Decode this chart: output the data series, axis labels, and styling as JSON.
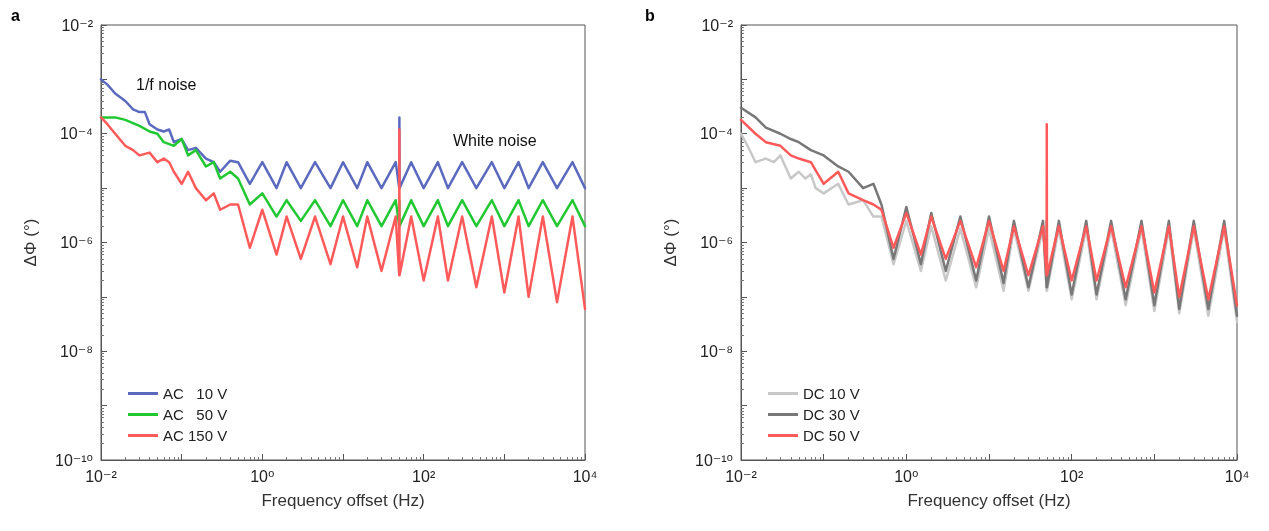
{
  "chart_data": [
    {
      "type": "line",
      "title": "a",
      "xlabel": "Frequency offset (Hz)",
      "ylabel": "ΔΦ (°)",
      "log": "xy",
      "grid": false,
      "legend": "bottom left",
      "marker": "none",
      "line_style": "solid",
      "xlim": [
        0.01,
        10000
      ],
      "ylim": [
        1e-10,
        0.01
      ],
      "xticks": [
        {
          "value": 0.01,
          "label": "10⁻²"
        },
        {
          "value": 0.1,
          "label": null
        },
        {
          "value": 1,
          "label": "10⁰"
        },
        {
          "value": 10,
          "label": null
        },
        {
          "value": 100,
          "label": "10²"
        },
        {
          "value": 1000,
          "label": null
        },
        {
          "value": 10000,
          "label": "10⁴"
        }
      ],
      "yticks": [
        {
          "value": 1e-10,
          "label": "10⁻¹⁰"
        },
        {
          "value": 1e-09,
          "label": null
        },
        {
          "value": 1e-08,
          "label": "10⁻⁸"
        },
        {
          "value": 1e-07,
          "label": null
        },
        {
          "value": 1e-06,
          "label": "10⁻⁶"
        },
        {
          "value": 1e-05,
          "label": null
        },
        {
          "value": 0.0001,
          "label": "10⁻⁴"
        },
        {
          "value": 0.001,
          "label": null
        },
        {
          "value": 0.01,
          "label": "10⁻²"
        }
      ],
      "annotations": [
        "1/f noise",
        "White noise"
      ],
      "series": [
        {
          "name": "AC   10 V",
          "color": "#5b6abf",
          "x": [
            0.01,
            0.012,
            0.015,
            0.02,
            0.025,
            0.03,
            0.035,
            0.04,
            0.05,
            0.06,
            0.07,
            0.08,
            0.1,
            0.12,
            0.15,
            0.2,
            0.25,
            0.3,
            0.4,
            0.5,
            0.7,
            1,
            1.5,
            2,
            3,
            4.5,
            7,
            10,
            15,
            20,
            30,
            45,
            49.8,
            50,
            50.2,
            70,
            100,
            150,
            200,
            300,
            450,
            700,
            1000,
            1500,
            2000,
            3000,
            4500,
            7000,
            10000
          ],
          "values": [
            0.001,
            0.0008,
            0.00055,
            0.0004,
            0.00028,
            0.00025,
            0.00025,
            0.00015,
            0.00012,
            0.00011,
            0.00012,
            7e-05,
            8e-05,
            5e-05,
            5.5e-05,
            3.5e-05,
            3e-05,
            2e-05,
            3.2e-05,
            3e-05,
            1.2e-05,
            3e-05,
            1e-05,
            3e-05,
            1e-05,
            3e-05,
            1e-05,
            3e-05,
            1e-05,
            3e-05,
            1e-05,
            3e-05,
            1e-05,
            0.0002,
            1e-05,
            3e-05,
            1e-05,
            3e-05,
            1e-05,
            3e-05,
            1e-05,
            3e-05,
            1e-05,
            3e-05,
            1e-05,
            3e-05,
            1e-05,
            3e-05,
            1e-05
          ]
        },
        {
          "name": "AC   50 V",
          "color": "#22c832",
          "x": [
            0.01,
            0.015,
            0.02,
            0.03,
            0.04,
            0.05,
            0.06,
            0.08,
            0.1,
            0.12,
            0.15,
            0.2,
            0.25,
            0.3,
            0.4,
            0.5,
            0.7,
            1,
            1.5,
            2,
            3,
            4.5,
            7,
            10,
            15,
            20,
            30,
            45,
            49.8,
            50,
            50.2,
            70,
            100,
            150,
            200,
            300,
            450,
            700,
            1000,
            1500,
            2000,
            3000,
            4500,
            7000,
            10000
          ],
          "values": [
            0.0002,
            0.0002,
            0.00018,
            0.00014,
            0.00011,
            0.0001,
            7e-05,
            6e-05,
            8e-05,
            4e-05,
            5e-05,
            2.5e-05,
            3e-05,
            1.5e-05,
            2e-05,
            1.5e-05,
            5e-06,
            8e-06,
            3e-06,
            6e-06,
            2.5e-06,
            6e-06,
            2e-06,
            6e-06,
            2e-06,
            6e-06,
            2e-06,
            6e-06,
            2e-06,
            6e-06,
            2e-06,
            6e-06,
            2e-06,
            6e-06,
            2e-06,
            6e-06,
            2e-06,
            6e-06,
            2e-06,
            6e-06,
            2e-06,
            6e-06,
            2e-06,
            6e-06,
            2e-06
          ]
        },
        {
          "name": "AC 150 V",
          "color": "#ff5a5a",
          "x": [
            0.01,
            0.012,
            0.015,
            0.02,
            0.025,
            0.03,
            0.04,
            0.05,
            0.06,
            0.07,
            0.08,
            0.1,
            0.12,
            0.15,
            0.2,
            0.25,
            0.3,
            0.4,
            0.5,
            0.7,
            1,
            1.5,
            2,
            3,
            4.5,
            7,
            10,
            15,
            20,
            30,
            45,
            49.8,
            50,
            50.2,
            70,
            100,
            150,
            200,
            300,
            450,
            700,
            1000,
            1500,
            2000,
            3000,
            4500,
            7000,
            10000
          ],
          "values": [
            0.0002,
            0.00015,
            0.0001,
            6e-05,
            5e-05,
            4e-05,
            4.5e-05,
            3e-05,
            3.5e-05,
            3e-05,
            2e-05,
            1.2e-05,
            2e-05,
            1e-05,
            6e-06,
            8e-06,
            4e-06,
            5e-06,
            5e-06,
            8e-07,
            4e-06,
            6e-07,
            3e-06,
            5e-07,
            3e-06,
            4e-07,
            3e-06,
            3.5e-07,
            3e-06,
            3e-07,
            3e-06,
            2.5e-07,
            0.00012,
            2.5e-07,
            3e-06,
            2e-07,
            3e-06,
            2e-07,
            3e-06,
            1.5e-07,
            3e-06,
            1.2e-07,
            3e-06,
            1e-07,
            3e-06,
            8e-08,
            3e-06,
            6e-08
          ]
        }
      ]
    },
    {
      "type": "line",
      "title": "b",
      "xlabel": "Frequency offset (Hz)",
      "ylabel": "ΔΦ (°)",
      "log": "xy",
      "grid": false,
      "legend": "bottom left",
      "marker": "none",
      "line_style": "solid",
      "xlim": [
        0.01,
        10000
      ],
      "ylim": [
        1e-10,
        0.01
      ],
      "xticks": [
        {
          "value": 0.01,
          "label": "10⁻²"
        },
        {
          "value": 0.1,
          "label": null
        },
        {
          "value": 1,
          "label": "10⁰"
        },
        {
          "value": 10,
          "label": null
        },
        {
          "value": 100,
          "label": "10²"
        },
        {
          "value": 1000,
          "label": null
        },
        {
          "value": 10000,
          "label": "10⁴"
        }
      ],
      "yticks": [
        {
          "value": 1e-10,
          "label": "10⁻¹⁰"
        },
        {
          "value": 1e-09,
          "label": null
        },
        {
          "value": 1e-08,
          "label": "10⁻⁸"
        },
        {
          "value": 1e-07,
          "label": null
        },
        {
          "value": 1e-06,
          "label": "10⁻⁶"
        },
        {
          "value": 1e-05,
          "label": null
        },
        {
          "value": 0.0001,
          "label": "10⁻⁴"
        },
        {
          "value": 0.001,
          "label": null
        },
        {
          "value": 0.01,
          "label": "10⁻²"
        }
      ],
      "series": [
        {
          "name": "DC 10 V",
          "color": "#c8c8c8",
          "x": [
            0.01,
            0.012,
            0.015,
            0.02,
            0.025,
            0.03,
            0.04,
            0.05,
            0.06,
            0.07,
            0.08,
            0.1,
            0.15,
            0.2,
            0.3,
            0.4,
            0.5,
            0.7,
            1,
            1.5,
            2,
            3,
            4.5,
            7,
            10,
            15,
            20,
            30,
            45,
            49.8,
            50,
            50.2,
            70,
            100,
            150,
            200,
            300,
            450,
            700,
            1000,
            1500,
            2000,
            3000,
            4500,
            7000,
            10000
          ],
          "values": [
            0.0001,
            6e-05,
            3e-05,
            3.5e-05,
            3e-05,
            4e-05,
            1.5e-05,
            2e-05,
            1.5e-05,
            1.8e-05,
            1e-05,
            8e-06,
            1.2e-05,
            5e-06,
            6e-06,
            3e-06,
            3e-06,
            4e-07,
            2.5e-06,
            3e-07,
            2e-06,
            2e-07,
            1.8e-06,
            1.5e-07,
            1.8e-06,
            1.3e-07,
            1.8e-06,
            1.3e-07,
            1.8e-06,
            1.3e-07,
            1.8e-06,
            1.3e-07,
            1.8e-06,
            9e-08,
            1.8e-06,
            9e-08,
            1.8e-06,
            7e-08,
            1.8e-06,
            5.5e-08,
            1.8e-06,
            5e-08,
            1.8e-06,
            4.5e-08,
            1.8e-06,
            3.5e-08
          ]
        },
        {
          "name": "DC 30 V",
          "color": "#787878",
          "x": [
            0.01,
            0.015,
            0.02,
            0.03,
            0.04,
            0.05,
            0.07,
            0.1,
            0.15,
            0.2,
            0.3,
            0.4,
            0.5,
            0.7,
            1,
            1.5,
            2,
            3,
            4.5,
            7,
            10,
            15,
            20,
            30,
            45,
            49.8,
            50,
            50.2,
            70,
            100,
            150,
            200,
            300,
            450,
            700,
            1000,
            1500,
            2000,
            3000,
            4500,
            7000,
            10000
          ],
          "values": [
            0.0003,
            0.0002,
            0.00013,
            0.0001,
            8e-05,
            7e-05,
            5e-05,
            4e-05,
            2.5e-05,
            2e-05,
            1e-05,
            1.2e-05,
            5e-06,
            5e-07,
            4.5e-06,
            4e-07,
            3.5e-06,
            3e-07,
            3e-06,
            2e-07,
            3e-06,
            1.8e-07,
            2.5e-06,
            1.5e-07,
            2.5e-06,
            1.5e-07,
            2.5e-06,
            1.5e-07,
            2.5e-06,
            1.1e-07,
            2.5e-06,
            1.1e-07,
            2.5e-06,
            9e-08,
            2.5e-06,
            7e-08,
            2.5e-06,
            6e-08,
            2.5e-06,
            6e-08,
            2.5e-06,
            4.5e-08
          ]
        },
        {
          "name": "DC 50 V",
          "color": "#ff5a5a",
          "x": [
            0.01,
            0.015,
            0.02,
            0.03,
            0.04,
            0.05,
            0.07,
            0.1,
            0.15,
            0.2,
            0.3,
            0.4,
            0.5,
            0.7,
            1,
            1.5,
            2,
            3,
            4.5,
            7,
            10,
            15,
            20,
            30,
            45,
            49.8,
            50,
            50.2,
            70,
            100,
            150,
            200,
            300,
            450,
            700,
            1000,
            1500,
            2000,
            3000,
            4500,
            7000,
            10000
          ],
          "values": [
            0.00018,
            0.0001,
            7e-05,
            6e-05,
            4e-05,
            3.5e-05,
            3e-05,
            1.2e-05,
            2e-05,
            8e-06,
            6e-06,
            5e-06,
            4e-06,
            8e-07,
            3.5e-06,
            6e-07,
            3e-06,
            5e-07,
            2.5e-06,
            3.5e-07,
            2.5e-06,
            3e-07,
            2e-06,
            2.5e-07,
            2e-06,
            2.5e-07,
            0.00015,
            2.5e-07,
            2e-06,
            2e-07,
            2e-06,
            2e-07,
            2e-06,
            1.5e-07,
            2e-06,
            1.2e-07,
            2e-06,
            1e-07,
            2e-06,
            9e-08,
            2e-06,
            7e-08
          ]
        }
      ]
    }
  ]
}
